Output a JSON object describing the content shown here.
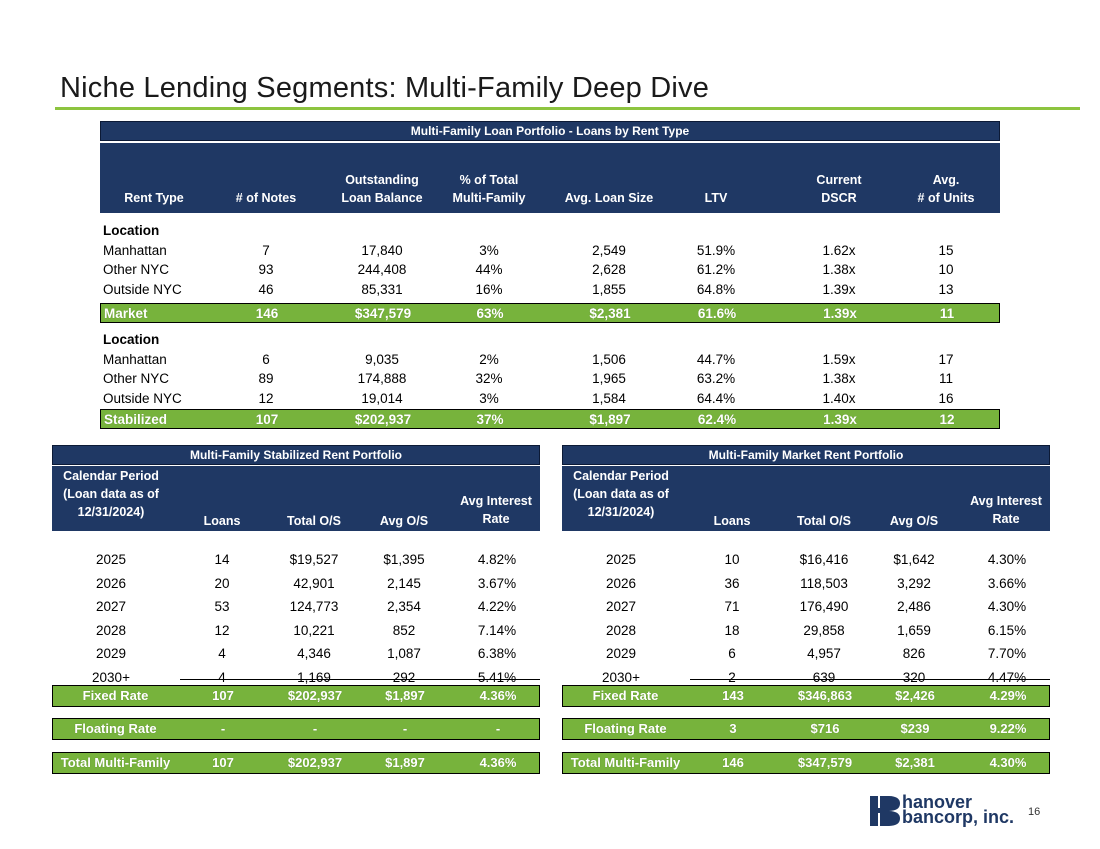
{
  "page": {
    "title": "Niche Lending Segments: Multi-Family Deep Dive",
    "page_number": "16",
    "logo_line1": "hanover",
    "logo_line2": "bancorp, inc."
  },
  "colors": {
    "navy": "#1f3864",
    "green": "#77b33c",
    "accent": "#8dc43f"
  },
  "portfolio": {
    "title": "Multi-Family Loan Portfolio - Loans by Rent Type",
    "headers": {
      "rent_type": "Rent Type",
      "notes": "# of Notes",
      "balance_1": "Outstanding",
      "balance_2": "Loan Balance",
      "pct_1": "% of Total",
      "pct_2": "Multi-Family",
      "avg_size": "Avg. Loan Size",
      "ltv": "LTV",
      "dscr_1": "Current",
      "dscr_2": "DSCR",
      "units_1": "Avg.",
      "units_2": "# of Units"
    },
    "market": {
      "section_label": "Location",
      "rows": [
        [
          "Manhattan",
          "7",
          "17,840",
          "3%",
          "2,549",
          "51.9%",
          "1.62x",
          "15"
        ],
        [
          "Other NYC",
          "93",
          "244,408",
          "44%",
          "2,628",
          "61.2%",
          "1.38x",
          "10"
        ],
        [
          "Outside NYC",
          "46",
          "85,331",
          "16%",
          "1,855",
          "64.8%",
          "1.39x",
          "13"
        ]
      ],
      "total": [
        "Market",
        "146",
        "$347,579",
        "63%",
        "$2,381",
        "61.6%",
        "1.39x",
        "11"
      ]
    },
    "stabilized": {
      "section_label": "Location",
      "rows": [
        [
          "Manhattan",
          "6",
          "9,035",
          "2%",
          "1,506",
          "44.7%",
          "1.59x",
          "17"
        ],
        [
          "Other NYC",
          "89",
          "174,888",
          "32%",
          "1,965",
          "63.2%",
          "1.38x",
          "11"
        ],
        [
          "Outside NYC",
          "12",
          "19,014",
          "3%",
          "1,584",
          "64.4%",
          "1.40x",
          "16"
        ]
      ],
      "total": [
        "Stabilized",
        "107",
        "$202,937",
        "37%",
        "$1,897",
        "62.4%",
        "1.39x",
        "12"
      ]
    }
  },
  "stabilized_panel": {
    "title": "Multi-Family Stabilized Rent Portfolio",
    "headers": {
      "period_1": "Calendar Period",
      "period_2": "(Loan data as of",
      "period_3": "12/31/2024)",
      "loans": "Loans",
      "total": "Total O/S",
      "avg": "Avg O/S",
      "rate_1": "Avg Interest",
      "rate_2": "Rate"
    },
    "rows": [
      [
        "2025",
        "14",
        "$19,527",
        "$1,395",
        "4.82%"
      ],
      [
        "2026",
        "20",
        "42,901",
        "2,145",
        "3.67%"
      ],
      [
        "2027",
        "53",
        "124,773",
        "2,354",
        "4.22%"
      ],
      [
        "2028",
        "12",
        "10,221",
        "852",
        "7.14%"
      ],
      [
        "2029",
        "4",
        "4,346",
        "1,087",
        "6.38%"
      ],
      [
        "2030+",
        "4",
        "1,169",
        "292",
        "5.41%"
      ]
    ],
    "fixed": [
      "Fixed Rate",
      "107",
      "$202,937",
      "$1,897",
      "4.36%"
    ],
    "floating": [
      "Floating Rate",
      "-",
      "-",
      "-",
      "-"
    ],
    "total": [
      "Total Multi-Family",
      "107",
      "$202,937",
      "$1,897",
      "4.36%"
    ]
  },
  "market_panel": {
    "title": "Multi-Family Market Rent Portfolio",
    "headers": {
      "period_1": "Calendar Period",
      "period_2": "(Loan data as of",
      "period_3": "12/31/2024)",
      "loans": "Loans",
      "total": "Total O/S",
      "avg": "Avg O/S",
      "rate_1": "Avg Interest",
      "rate_2": "Rate"
    },
    "rows": [
      [
        "2025",
        "10",
        "$16,416",
        "$1,642",
        "4.30%"
      ],
      [
        "2026",
        "36",
        "118,503",
        "3,292",
        "3.66%"
      ],
      [
        "2027",
        "71",
        "176,490",
        "2,486",
        "4.30%"
      ],
      [
        "2028",
        "18",
        "29,858",
        "1,659",
        "6.15%"
      ],
      [
        "2029",
        "6",
        "4,957",
        "826",
        "7.70%"
      ],
      [
        "2030+",
        "2",
        "639",
        "320",
        "4.47%"
      ]
    ],
    "fixed": [
      "Fixed Rate",
      "143",
      "$346,863",
      "$2,426",
      "4.29%"
    ],
    "floating": [
      "Floating Rate",
      "3",
      "$716",
      "$239",
      "9.22%"
    ],
    "total": [
      "Total Multi-Family",
      "146",
      "$347,579",
      "$2,381",
      "4.30%"
    ]
  }
}
